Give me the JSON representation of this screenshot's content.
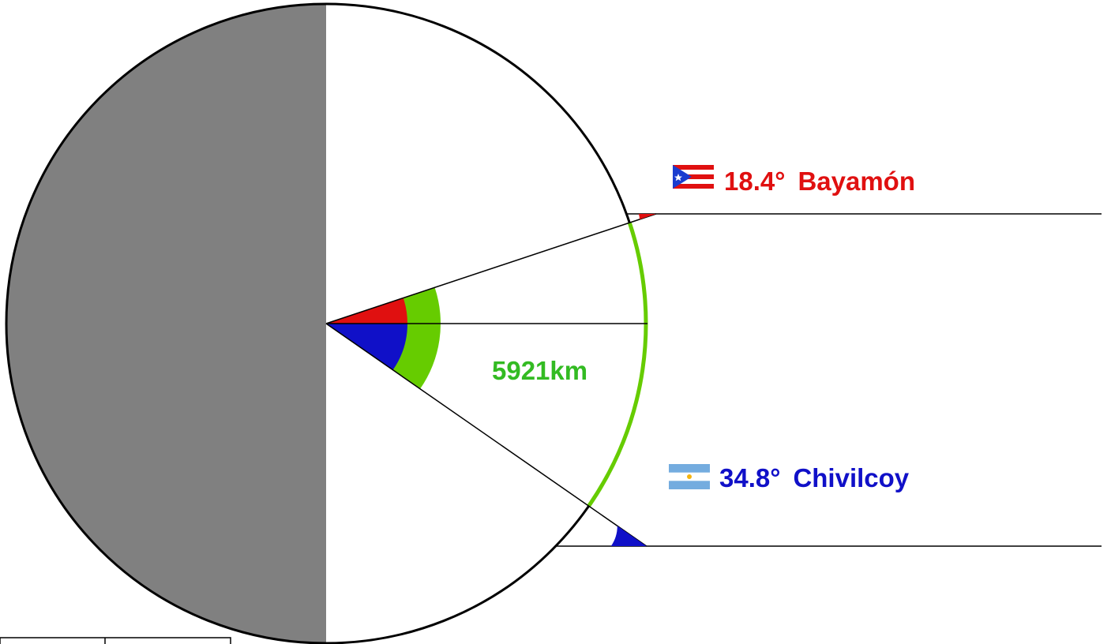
{
  "diagram": {
    "cities": [
      {
        "name": "Bayamón",
        "latitude_text": "18.4°",
        "latitude_deg": 18.4,
        "hemisphere": "north",
        "color": "#e01010",
        "flag_icon": "puerto-rico-flag-icon"
      },
      {
        "name": "Chivilcoy",
        "latitude_text": "34.8°",
        "latitude_deg": 34.8,
        "hemisphere": "south",
        "color": "#1010c8",
        "flag_icon": "argentina-flag-icon"
      }
    ],
    "distance_label": "5921km",
    "colors": {
      "dark_hemisphere": "#808080",
      "arc": "#66cc00",
      "distance_text": "#33bb22",
      "outline": "#000000",
      "pr_red": "#e01010",
      "pr_blue": "#1a3ccf",
      "ar_light_blue": "#74acdf"
    }
  }
}
